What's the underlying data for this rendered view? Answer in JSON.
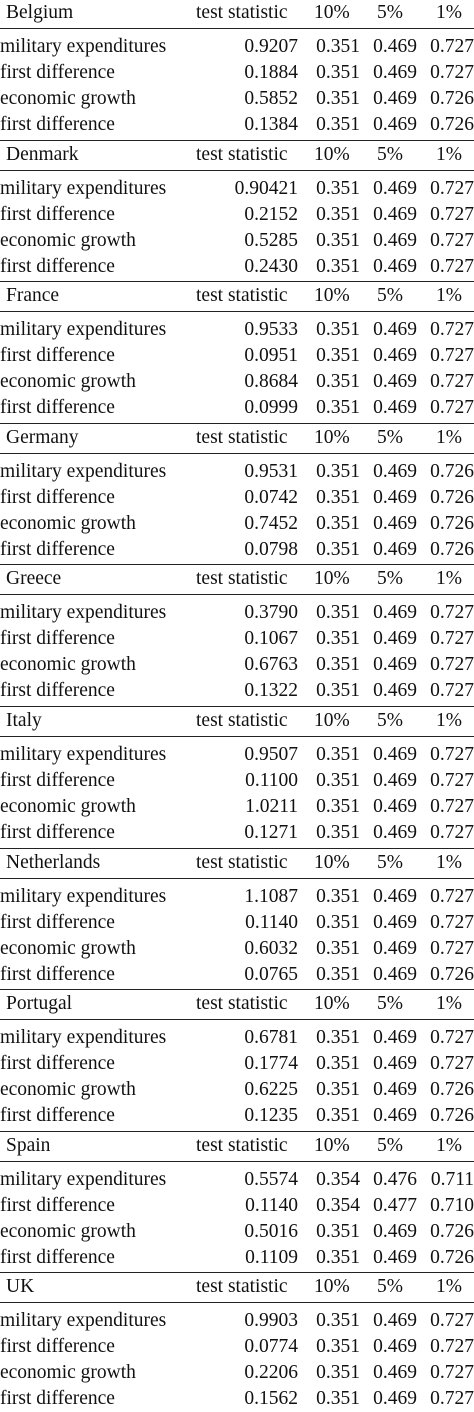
{
  "header": {
    "stat": "test statistic",
    "p10": "10%",
    "p5": "5%",
    "p1": "1%"
  },
  "countries": [
    {
      "name": "Belgium",
      "rows": [
        {
          "label": "military expenditures",
          "stat": "0.9207",
          "p10": "0.351",
          "p5": "0.469",
          "p1": "0.727"
        },
        {
          "label": "first difference",
          "stat": "0.1884",
          "p10": "0.351",
          "p5": "0.469",
          "p1": "0.727"
        },
        {
          "label": "economic growth",
          "stat": "0.5852",
          "p10": "0.351",
          "p5": "0.469",
          "p1": "0.726"
        },
        {
          "label": "first difference",
          "stat": "0.1384",
          "p10": "0.351",
          "p5": "0.469",
          "p1": "0.726"
        }
      ]
    },
    {
      "name": "Denmark",
      "rows": [
        {
          "label": "military expenditures",
          "stat": "0.90421",
          "p10": "0.351",
          "p5": "0.469",
          "p1": "0.727"
        },
        {
          "label": "first difference",
          "stat": "0.2152",
          "p10": "0.351",
          "p5": "0.469",
          "p1": "0.727"
        },
        {
          "label": "economic growth",
          "stat": "0.5285",
          "p10": "0.351",
          "p5": "0.469",
          "p1": "0.727"
        },
        {
          "label": "first difference",
          "stat": "0.2430",
          "p10": "0.351",
          "p5": "0.469",
          "p1": "0.727"
        }
      ]
    },
    {
      "name": "France",
      "rows": [
        {
          "label": "military expenditures",
          "stat": "0.9533",
          "p10": "0.351",
          "p5": "0.469",
          "p1": "0.727"
        },
        {
          "label": "first difference",
          "stat": "0.0951",
          "p10": "0.351",
          "p5": "0.469",
          "p1": "0.727"
        },
        {
          "label": "economic growth",
          "stat": "0.8684",
          "p10": "0.351",
          "p5": "0.469",
          "p1": "0.727"
        },
        {
          "label": "first difference",
          "stat": "0.0999",
          "p10": "0.351",
          "p5": "0.469",
          "p1": "0.727"
        }
      ]
    },
    {
      "name": "Germany",
      "rows": [
        {
          "label": "military expenditures",
          "stat": "0.9531",
          "p10": "0.351",
          "p5": "0.469",
          "p1": "0.726"
        },
        {
          "label": "first difference",
          "stat": "0.0742",
          "p10": "0.351",
          "p5": "0.469",
          "p1": "0.726"
        },
        {
          "label": "economic growth",
          "stat": "0.7452",
          "p10": "0.351",
          "p5": "0.469",
          "p1": "0.726"
        },
        {
          "label": "first difference",
          "stat": "0.0798",
          "p10": "0.351",
          "p5": "0.469",
          "p1": "0.726"
        }
      ]
    },
    {
      "name": "Greece",
      "rows": [
        {
          "label": "military expenditures",
          "stat": "0.3790",
          "p10": "0.351",
          "p5": "0.469",
          "p1": "0.727"
        },
        {
          "label": "first difference",
          "stat": "0.1067",
          "p10": "0.351",
          "p5": "0.469",
          "p1": "0.727"
        },
        {
          "label": "economic growth",
          "stat": "0.6763",
          "p10": "0.351",
          "p5": "0.469",
          "p1": "0.727"
        },
        {
          "label": "first difference",
          "stat": "0.1322",
          "p10": "0.351",
          "p5": "0.469",
          "p1": "0.727"
        }
      ]
    },
    {
      "name": "Italy",
      "rows": [
        {
          "label": "military expenditures",
          "stat": "0.9507",
          "p10": "0.351",
          "p5": "0.469",
          "p1": "0.727"
        },
        {
          "label": "first difference",
          "stat": "0.1100",
          "p10": "0.351",
          "p5": "0.469",
          "p1": "0.727"
        },
        {
          "label": "economic growth",
          "stat": "1.0211",
          "p10": "0.351",
          "p5": "0.469",
          "p1": "0.727"
        },
        {
          "label": "first difference",
          "stat": "0.1271",
          "p10": "0.351",
          "p5": "0.469",
          "p1": "0.727"
        }
      ]
    },
    {
      "name": "Netherlands",
      "rows": [
        {
          "label": "military expenditures",
          "stat": "1.1087",
          "p10": "0.351",
          "p5": "0.469",
          "p1": "0.727"
        },
        {
          "label": "first difference",
          "stat": "0.1140",
          "p10": "0.351",
          "p5": "0.469",
          "p1": "0.727"
        },
        {
          "label": "economic growth",
          "stat": "0.6032",
          "p10": "0.351",
          "p5": "0.469",
          "p1": "0.727"
        },
        {
          "label": "first difference",
          "stat": "0.0765",
          "p10": "0.351",
          "p5": "0.469",
          "p1": "0.726"
        }
      ]
    },
    {
      "name": "Portugal",
      "rows": [
        {
          "label": "military expenditures",
          "stat": "0.6781",
          "p10": "0.351",
          "p5": "0.469",
          "p1": "0.727"
        },
        {
          "label": "first difference",
          "stat": "0.1774",
          "p10": "0.351",
          "p5": "0.469",
          "p1": "0.727"
        },
        {
          "label": "economic growth",
          "stat": "0.6225",
          "p10": "0.351",
          "p5": "0.469",
          "p1": "0.726"
        },
        {
          "label": "first difference",
          "stat": "0.1235",
          "p10": "0.351",
          "p5": "0.469",
          "p1": "0.726"
        }
      ]
    },
    {
      "name": "Spain",
      "rows": [
        {
          "label": "military expenditures",
          "stat": "0.5574",
          "p10": "0.354",
          "p5": "0.476",
          "p1": "0.711"
        },
        {
          "label": "first difference",
          "stat": "0.1140",
          "p10": "0.354",
          "p5": "0.477",
          "p1": "0.710"
        },
        {
          "label": "economic growth",
          "stat": "0.5016",
          "p10": "0.351",
          "p5": "0.469",
          "p1": "0.726"
        },
        {
          "label": "first difference",
          "stat": "0.1109",
          "p10": "0.351",
          "p5": "0.469",
          "p1": "0.726"
        }
      ]
    },
    {
      "name": "UK",
      "rows": [
        {
          "label": "military expenditures",
          "stat": "0.9903",
          "p10": "0.351",
          "p5": "0.469",
          "p1": "0.727"
        },
        {
          "label": "first difference",
          "stat": "0.0774",
          "p10": "0.351",
          "p5": "0.469",
          "p1": "0.727"
        },
        {
          "label": "economic growth",
          "stat": "0.2206",
          "p10": "0.351",
          "p5": "0.469",
          "p1": "0.727"
        },
        {
          "label": "first difference",
          "stat": "0.1562",
          "p10": "0.351",
          "p5": "0.469",
          "p1": "0.727"
        }
      ]
    }
  ]
}
